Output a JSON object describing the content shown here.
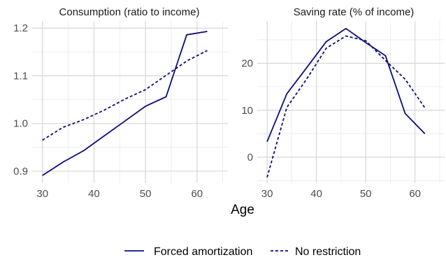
{
  "figure": {
    "shared_xlabel": "Age",
    "legend_position": "bottom"
  },
  "legend": {
    "items": [
      {
        "label": "Forced amortization",
        "style": "solid"
      },
      {
        "label": "No restriction",
        "style": "dashed"
      }
    ]
  },
  "chart_data": [
    {
      "type": "line",
      "title": "Consumption (ratio to income)",
      "xlabel": "Age",
      "ylabel": "",
      "xlim": [
        28,
        66
      ],
      "ylim": [
        0.875,
        1.215
      ],
      "xticks": [
        30,
        40,
        50,
        60
      ],
      "yticks": [
        0.9,
        1.0,
        1.1,
        1.2
      ],
      "ytick_labels": [
        "0.9",
        "1.0",
        "1.1",
        "1.2"
      ],
      "grid": true,
      "x": [
        30,
        34,
        38,
        42,
        46,
        50,
        54,
        58,
        62
      ],
      "series": [
        {
          "name": "Forced amortization",
          "style": "solid",
          "color": "#0b0b7a",
          "values": [
            0.891,
            0.919,
            0.943,
            0.974,
            1.005,
            1.036,
            1.056,
            1.186,
            1.193
          ]
        },
        {
          "name": "No restriction",
          "style": "dashed",
          "color": "#0b0b7a",
          "values": [
            0.965,
            0.992,
            1.008,
            1.028,
            1.051,
            1.071,
            1.101,
            1.131,
            1.153
          ]
        }
      ]
    },
    {
      "type": "line",
      "title": "Saving rate (% of income)",
      "xlabel": "Age",
      "ylabel": "",
      "xlim": [
        28,
        66
      ],
      "ylim": [
        -5.5,
        29
      ],
      "xticks": [
        30,
        40,
        50,
        60
      ],
      "yticks": [
        0,
        10,
        20
      ],
      "ytick_labels": [
        "0",
        "10",
        "20"
      ],
      "grid": true,
      "x": [
        30,
        34,
        38,
        42,
        46,
        50,
        54,
        58,
        62
      ],
      "series": [
        {
          "name": "Forced amortization",
          "style": "solid",
          "color": "#0b0b7a",
          "values": [
            3.3,
            13.5,
            19.0,
            24.6,
            27.4,
            24.4,
            21.6,
            9.3,
            5.0
          ]
        },
        {
          "name": "No restriction",
          "style": "dashed",
          "color": "#0b0b7a",
          "values": [
            -4.3,
            10.6,
            16.6,
            23.2,
            25.8,
            24.8,
            20.6,
            16.6,
            10.5
          ]
        }
      ]
    }
  ]
}
